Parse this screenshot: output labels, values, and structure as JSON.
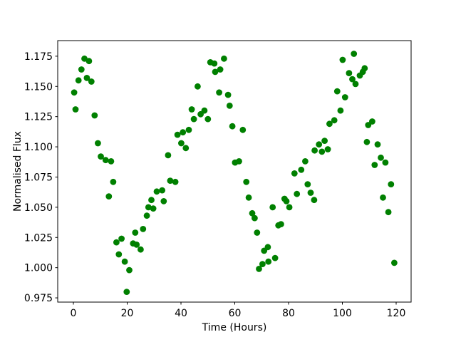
{
  "figure": {
    "background": "#ffffff"
  },
  "chart_data": {
    "type": "scatter",
    "title": "",
    "xlabel": "Time (Hours)",
    "ylabel": "Normalised Flux",
    "grid": false,
    "legend": null,
    "marker_color": "#008000",
    "xlim": [
      -5.83,
      125.56
    ],
    "ylim": [
      0.9715,
      1.1879
    ],
    "xticks": [
      {
        "v": 0,
        "label": "0"
      },
      {
        "v": 20,
        "label": "20"
      },
      {
        "v": 40,
        "label": "40"
      },
      {
        "v": 60,
        "label": "60"
      },
      {
        "v": 80,
        "label": "80"
      },
      {
        "v": 100,
        "label": "100"
      },
      {
        "v": 120,
        "label": "120"
      }
    ],
    "yticks": [
      {
        "v": 0.975,
        "label": "0.975"
      },
      {
        "v": 1.0,
        "label": "1.000"
      },
      {
        "v": 1.025,
        "label": "1.025"
      },
      {
        "v": 1.05,
        "label": "1.050"
      },
      {
        "v": 1.075,
        "label": "1.075"
      },
      {
        "v": 1.1,
        "label": "1.100"
      },
      {
        "v": 1.125,
        "label": "1.125"
      },
      {
        "v": 1.15,
        "label": "1.150"
      },
      {
        "v": 1.175,
        "label": "1.175"
      }
    ],
    "points": [
      [
        0.3,
        1.145
      ],
      [
        0.8,
        1.131
      ],
      [
        1.9,
        1.155
      ],
      [
        3.0,
        1.164
      ],
      [
        4.1,
        1.173
      ],
      [
        5.0,
        1.157
      ],
      [
        5.8,
        1.171
      ],
      [
        6.7,
        1.154
      ],
      [
        7.9,
        1.126
      ],
      [
        9.1,
        1.103
      ],
      [
        10.2,
        1.092
      ],
      [
        12.0,
        1.089
      ],
      [
        13.2,
        1.059
      ],
      [
        14.0,
        1.088
      ],
      [
        14.8,
        1.071
      ],
      [
        16.0,
        1.021
      ],
      [
        16.9,
        1.011
      ],
      [
        17.9,
        1.024
      ],
      [
        19.1,
        1.005
      ],
      [
        19.8,
        0.98
      ],
      [
        20.8,
        0.998
      ],
      [
        22.2,
        1.02
      ],
      [
        23.0,
        1.029
      ],
      [
        23.5,
        1.019
      ],
      [
        25.0,
        1.015
      ],
      [
        25.9,
        1.032
      ],
      [
        27.3,
        1.043
      ],
      [
        27.9,
        1.05
      ],
      [
        29.0,
        1.056
      ],
      [
        29.7,
        1.049
      ],
      [
        31.0,
        1.063
      ],
      [
        33.0,
        1.064
      ],
      [
        33.6,
        1.055
      ],
      [
        35.2,
        1.093
      ],
      [
        36.0,
        1.072
      ],
      [
        37.9,
        1.071
      ],
      [
        38.7,
        1.11
      ],
      [
        40.1,
        1.103
      ],
      [
        40.7,
        1.112
      ],
      [
        41.8,
        1.099
      ],
      [
        42.9,
        1.114
      ],
      [
        44.0,
        1.131
      ],
      [
        44.8,
        1.123
      ],
      [
        46.2,
        1.15
      ],
      [
        47.3,
        1.127
      ],
      [
        48.7,
        1.13
      ],
      [
        50.0,
        1.123
      ],
      [
        50.9,
        1.17
      ],
      [
        52.4,
        1.169
      ],
      [
        52.7,
        1.162
      ],
      [
        54.2,
        1.145
      ],
      [
        54.6,
        1.164
      ],
      [
        56.0,
        1.173
      ],
      [
        57.5,
        1.143
      ],
      [
        58.1,
        1.134
      ],
      [
        59.1,
        1.117
      ],
      [
        60.1,
        1.087
      ],
      [
        61.6,
        1.088
      ],
      [
        63.0,
        1.114
      ],
      [
        64.3,
        1.071
      ],
      [
        65.2,
        1.058
      ],
      [
        66.5,
        1.045
      ],
      [
        67.4,
        1.041
      ],
      [
        68.3,
        1.029
      ],
      [
        69.0,
        0.999
      ],
      [
        70.3,
        1.003
      ],
      [
        70.9,
        1.014
      ],
      [
        72.3,
        1.017
      ],
      [
        72.5,
        1.005
      ],
      [
        74.1,
        1.05
      ],
      [
        75.0,
        1.008
      ],
      [
        76.2,
        1.035
      ],
      [
        77.2,
        1.036
      ],
      [
        78.5,
        1.057
      ],
      [
        79.2,
        1.055
      ],
      [
        80.3,
        1.05
      ],
      [
        82.2,
        1.078
      ],
      [
        83.1,
        1.061
      ],
      [
        84.7,
        1.081
      ],
      [
        86.2,
        1.088
      ],
      [
        87.1,
        1.069
      ],
      [
        88.2,
        1.062
      ],
      [
        89.5,
        1.056
      ],
      [
        89.7,
        1.097
      ],
      [
        91.3,
        1.102
      ],
      [
        92.4,
        1.096
      ],
      [
        93.4,
        1.105
      ],
      [
        94.6,
        1.098
      ],
      [
        95.2,
        1.119
      ],
      [
        97.0,
        1.122
      ],
      [
        98.1,
        1.146
      ],
      [
        99.3,
        1.13
      ],
      [
        100.1,
        1.172
      ],
      [
        101.0,
        1.141
      ],
      [
        102.5,
        1.161
      ],
      [
        103.7,
        1.156
      ],
      [
        104.3,
        1.177
      ],
      [
        104.9,
        1.152
      ],
      [
        106.5,
        1.159
      ],
      [
        107.6,
        1.162
      ],
      [
        108.3,
        1.165
      ],
      [
        109.1,
        1.104
      ],
      [
        109.6,
        1.118
      ],
      [
        111.1,
        1.121
      ],
      [
        112.0,
        1.085
      ],
      [
        113.1,
        1.102
      ],
      [
        114.3,
        1.091
      ],
      [
        115.1,
        1.058
      ],
      [
        116.0,
        1.087
      ],
      [
        117.1,
        1.046
      ],
      [
        118.1,
        1.069
      ],
      [
        119.3,
        1.004
      ]
    ]
  }
}
